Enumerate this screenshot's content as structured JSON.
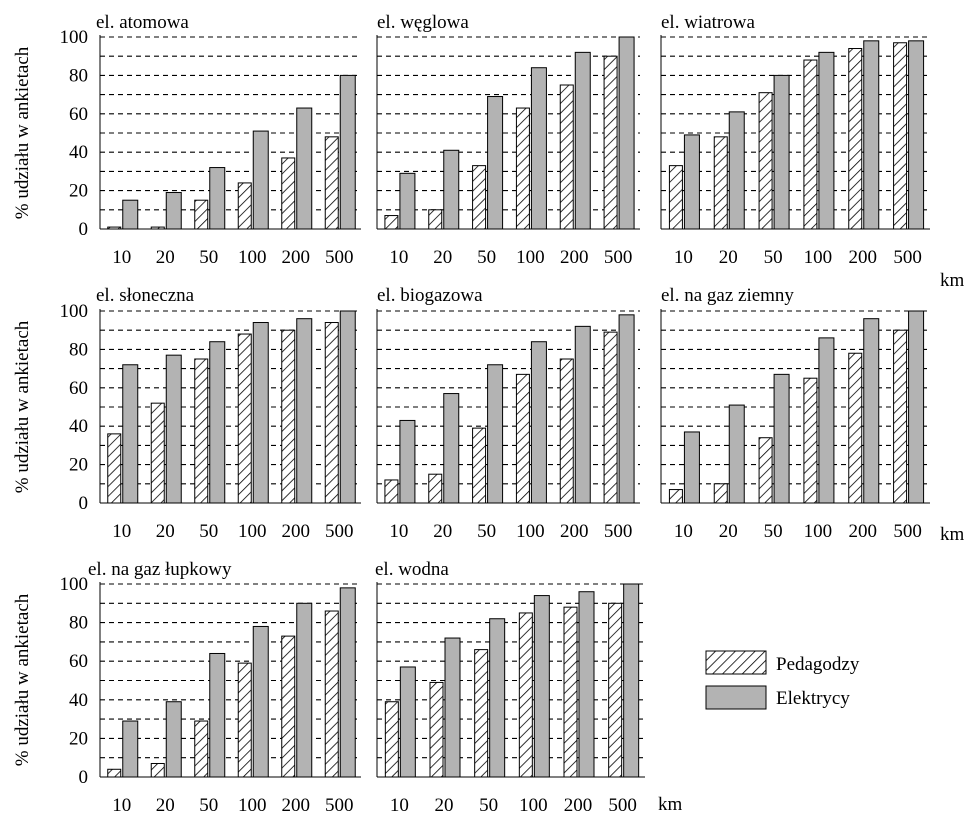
{
  "figure": {
    "ylabel": "% udziału w ankietach",
    "xunit": "km",
    "legend": {
      "placement": "bottom-right",
      "items": [
        "Pedagodzy",
        "Elektrycy"
      ]
    }
  },
  "colors": {
    "pedagodzy_fill": "#ffffff",
    "pedagodzy_hatch": "#000000",
    "elektrycy_fill": "#b3b3b3",
    "bar_stroke": "#000000",
    "grid": "#000000"
  },
  "chart_data": [
    {
      "type": "bar",
      "title": "el. atomowa",
      "categories": [
        "10",
        "20",
        "50",
        "100",
        "200",
        "500"
      ],
      "ylim": [
        0,
        100
      ],
      "yticks": [
        0,
        20,
        40,
        60,
        80,
        100
      ],
      "grid": true,
      "series": [
        {
          "name": "Pedagodzy",
          "values": [
            1,
            1,
            15,
            24,
            37,
            48
          ]
        },
        {
          "name": "Elektrycy",
          "values": [
            15,
            19,
            32,
            51,
            63,
            80
          ]
        }
      ]
    },
    {
      "type": "bar",
      "title": "el. węglowa",
      "categories": [
        "10",
        "20",
        "50",
        "100",
        "200",
        "500"
      ],
      "ylim": [
        0,
        100
      ],
      "yticks": [
        0,
        20,
        40,
        60,
        80,
        100
      ],
      "grid": true,
      "series": [
        {
          "name": "Pedagodzy",
          "values": [
            7,
            10,
            33,
            63,
            75,
            90
          ]
        },
        {
          "name": "Elektrycy",
          "values": [
            29,
            41,
            69,
            84,
            92,
            100
          ]
        }
      ]
    },
    {
      "type": "bar",
      "title": "el. wiatrowa",
      "categories": [
        "10",
        "20",
        "50",
        "100",
        "200",
        "500"
      ],
      "ylim": [
        0,
        100
      ],
      "yticks": [
        0,
        20,
        40,
        60,
        80,
        100
      ],
      "grid": true,
      "series": [
        {
          "name": "Pedagodzy",
          "values": [
            33,
            48,
            71,
            88,
            94,
            97
          ]
        },
        {
          "name": "Elektrycy",
          "values": [
            49,
            61,
            80,
            92,
            98,
            98
          ]
        }
      ]
    },
    {
      "type": "bar",
      "title": "el. słoneczna",
      "categories": [
        "10",
        "20",
        "50",
        "100",
        "200",
        "500"
      ],
      "ylim": [
        0,
        100
      ],
      "yticks": [
        0,
        20,
        40,
        60,
        80,
        100
      ],
      "grid": true,
      "series": [
        {
          "name": "Pedagodzy",
          "values": [
            36,
            52,
            75,
            88,
            90,
            94
          ]
        },
        {
          "name": "Elektrycy",
          "values": [
            72,
            77,
            84,
            94,
            96,
            100
          ]
        }
      ]
    },
    {
      "type": "bar",
      "title": "el. biogazowa",
      "categories": [
        "10",
        "20",
        "50",
        "100",
        "200",
        "500"
      ],
      "ylim": [
        0,
        100
      ],
      "yticks": [
        0,
        20,
        40,
        60,
        80,
        100
      ],
      "grid": true,
      "series": [
        {
          "name": "Pedagodzy",
          "values": [
            12,
            15,
            39,
            67,
            75,
            89
          ]
        },
        {
          "name": "Elektrycy",
          "values": [
            43,
            57,
            72,
            84,
            92,
            98
          ]
        }
      ]
    },
    {
      "type": "bar",
      "title": "el. na gaz ziemny",
      "categories": [
        "10",
        "20",
        "50",
        "100",
        "200",
        "500"
      ],
      "ylim": [
        0,
        100
      ],
      "yticks": [
        0,
        20,
        40,
        60,
        80,
        100
      ],
      "grid": true,
      "series": [
        {
          "name": "Pedagodzy",
          "values": [
            7,
            10,
            34,
            65,
            78,
            90
          ]
        },
        {
          "name": "Elektrycy",
          "values": [
            37,
            51,
            67,
            86,
            96,
            100
          ]
        }
      ]
    },
    {
      "type": "bar",
      "title": "el. na gaz łupkowy",
      "categories": [
        "10",
        "20",
        "50",
        "100",
        "200",
        "500"
      ],
      "ylim": [
        0,
        100
      ],
      "yticks": [
        0,
        20,
        40,
        60,
        80,
        100
      ],
      "grid": true,
      "series": [
        {
          "name": "Pedagodzy",
          "values": [
            4,
            7,
            29,
            59,
            73,
            86
          ]
        },
        {
          "name": "Elektrycy",
          "values": [
            29,
            39,
            64,
            78,
            90,
            98
          ]
        }
      ]
    },
    {
      "type": "bar",
      "title": "el. wodna",
      "categories": [
        "10",
        "20",
        "50",
        "100",
        "200",
        "500"
      ],
      "ylim": [
        0,
        100
      ],
      "yticks": [
        0,
        20,
        40,
        60,
        80,
        100
      ],
      "grid": true,
      "series": [
        {
          "name": "Pedagodzy",
          "values": [
            39,
            49,
            66,
            85,
            88,
            90
          ]
        },
        {
          "name": "Elektrycy",
          "values": [
            57,
            72,
            82,
            94,
            96,
            100
          ]
        }
      ]
    }
  ]
}
